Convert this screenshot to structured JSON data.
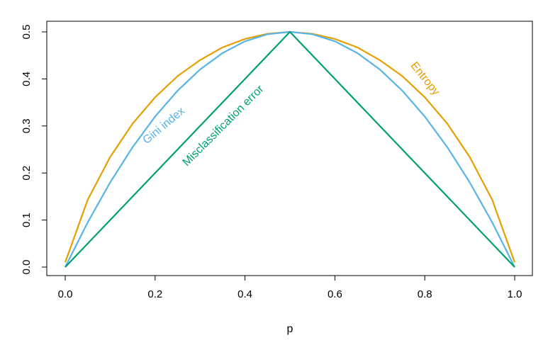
{
  "chart_data": {
    "type": "line",
    "title": "",
    "xlabel": "p",
    "ylabel": "",
    "xlim": [
      0,
      1
    ],
    "ylim": [
      0,
      0.5
    ],
    "x_ticks": [
      "0.0",
      "0.2",
      "0.4",
      "0.6",
      "0.8",
      "1.0"
    ],
    "y_ticks": [
      "0.0",
      "0.1",
      "0.2",
      "0.3",
      "0.4",
      "0.5"
    ],
    "grid": false,
    "legend": "none",
    "series": [
      {
        "name": "Entropy",
        "color": "#E69F00",
        "x": [
          0,
          0.05,
          0.1,
          0.15,
          0.2,
          0.25,
          0.3,
          0.35,
          0.4,
          0.45,
          0.5,
          0.55,
          0.6,
          0.65,
          0.7,
          0.75,
          0.8,
          0.85,
          0.9,
          0.95,
          1
        ],
        "y": [
          0.01,
          0.143,
          0.234,
          0.305,
          0.361,
          0.406,
          0.44,
          0.467,
          0.485,
          0.496,
          0.5,
          0.496,
          0.485,
          0.467,
          0.44,
          0.406,
          0.361,
          0.305,
          0.234,
          0.143,
          0.01
        ]
      },
      {
        "name": "Gini index",
        "color": "#56B4E9",
        "x": [
          0,
          0.05,
          0.1,
          0.15,
          0.2,
          0.25,
          0.3,
          0.35,
          0.4,
          0.45,
          0.5,
          0.55,
          0.6,
          0.65,
          0.7,
          0.75,
          0.8,
          0.85,
          0.9,
          0.95,
          1
        ],
        "y": [
          0,
          0.095,
          0.18,
          0.255,
          0.32,
          0.375,
          0.42,
          0.455,
          0.48,
          0.495,
          0.5,
          0.495,
          0.48,
          0.455,
          0.42,
          0.375,
          0.32,
          0.255,
          0.18,
          0.095,
          0
        ]
      },
      {
        "name": "Misclassification error",
        "color": "#009E73",
        "x": [
          0,
          0.5,
          1
        ],
        "y": [
          0,
          0.5,
          0
        ]
      }
    ],
    "annotations": [
      {
        "text": "Entropy",
        "series": "Entropy",
        "x": 0.8,
        "y": 0.4,
        "angle": 51
      },
      {
        "text": "Gini index",
        "series": "Gini index",
        "x": 0.22,
        "y": 0.3,
        "angle": -40
      },
      {
        "text": "Misclassification error",
        "series": "Misclassification error",
        "x": 0.352,
        "y": 0.3,
        "angle": -45
      }
    ]
  }
}
